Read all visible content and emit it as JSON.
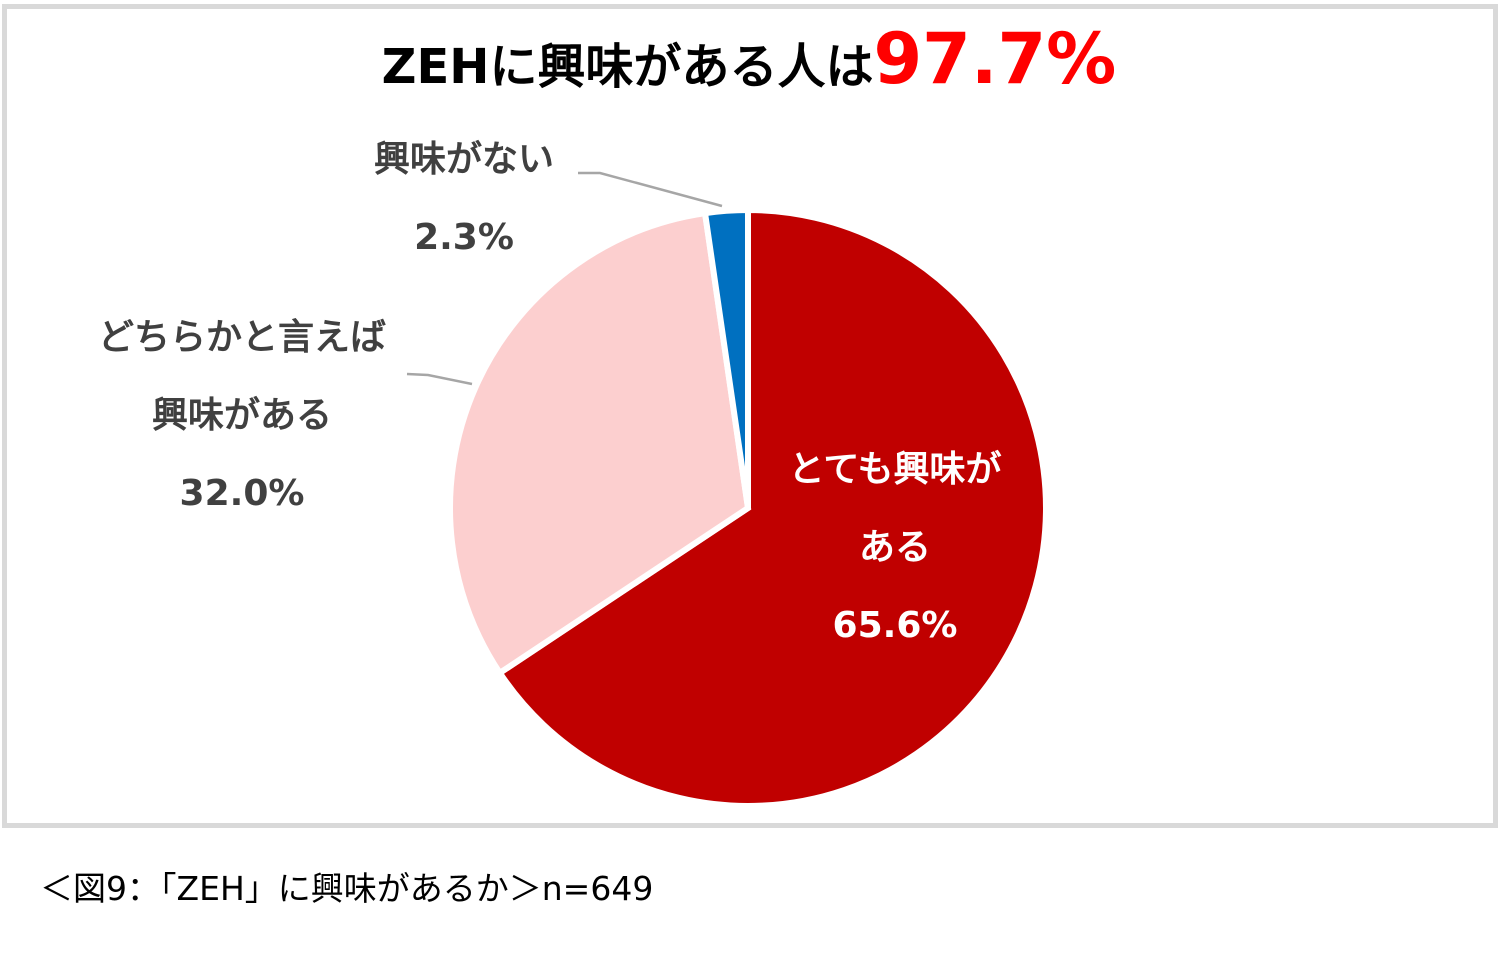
{
  "title": {
    "main": "ZEHに興味がある人は",
    "highlight": "97.7%"
  },
  "chart_data": {
    "type": "pie",
    "title": "ZEHに興味がある人は97.7%",
    "slices": [
      {
        "name_lines": [
          "とても興味が",
          "ある"
        ],
        "value": 65.6,
        "value_label": "65.6%",
        "color": "#c00000",
        "label_color": "#ffffff"
      },
      {
        "name_lines": [
          "どちらかと言えば",
          "興味がある"
        ],
        "value": 32.0,
        "value_label": "32.0%",
        "color": "#fccfcf",
        "label_color": "#404040"
      },
      {
        "name_lines": [
          "興味がない"
        ],
        "value": 2.3,
        "value_label": "2.3%",
        "color": "#0070c0",
        "label_color": "#404040"
      }
    ],
    "start_angle": "12 o'clock",
    "direction": "clockwise",
    "legend": "none"
  },
  "caption": "＜図9：「ZEH」に興味があるか＞n=649",
  "colors": {
    "frame": "#d9d9d9",
    "highlight": "#ff0000",
    "label_text": "#404040",
    "leader_line": "#a6a6a6"
  }
}
